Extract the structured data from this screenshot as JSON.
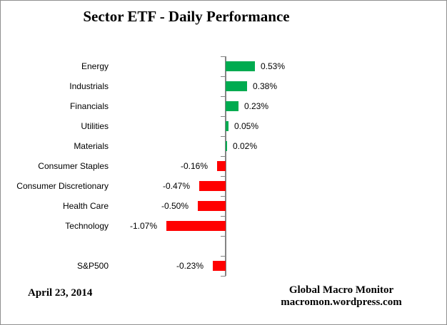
{
  "title": "Sector ETF - Daily Performance",
  "footer": {
    "date": "April 23, 2014",
    "attribution_line1": "Global Macro Monitor",
    "attribution_line2": "macromon.wordpress.com"
  },
  "chart_data": {
    "type": "bar",
    "orientation": "horizontal",
    "title": "Sector ETF - Daily Performance",
    "xlabel": "",
    "ylabel": "",
    "categories": [
      "Energy",
      "Industrials",
      "Financials",
      "Utilities",
      "Materials",
      "Consumer Staples",
      "Consumer Discretionary",
      "Health Care",
      "Technology",
      "",
      "S&P500"
    ],
    "values": [
      0.53,
      0.38,
      0.23,
      0.05,
      0.02,
      -0.16,
      -0.47,
      -0.5,
      -1.07,
      null,
      -0.23
    ],
    "labels": [
      "0.53%",
      "0.38%",
      "0.23%",
      "0.05%",
      "0.02%",
      "-0.16%",
      "-0.47%",
      "-0.50%",
      "-1.07%",
      "",
      "-0.23%"
    ],
    "unit": "%",
    "gridlines": false,
    "value_axis_visible": false,
    "legend": "none",
    "colors": {
      "positive": "#00AB50",
      "negative": "#FF0000",
      "axis": "#848484",
      "text": "#000000"
    }
  }
}
